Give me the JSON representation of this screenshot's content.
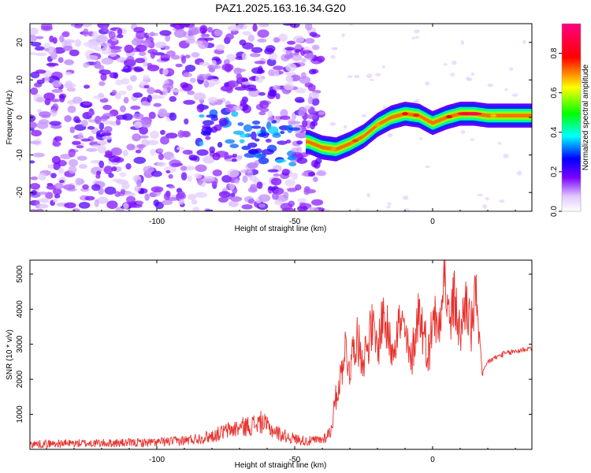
{
  "title": "PAZ1.2025.163.16.34.G20",
  "chart_data": [
    {
      "type": "heatmap",
      "xlabel": "Height of straight line (km)",
      "ylabel": "Frequency (Hz)",
      "xlim": [
        -146,
        36
      ],
      "ylim": [
        -25,
        25
      ],
      "xticks": [
        -100,
        -50,
        0
      ],
      "yticks": [
        -20,
        -10,
        0,
        10,
        20
      ],
      "colorbar": {
        "label": "Normalized spectral amplitude",
        "range": [
          0.0,
          0.95
        ],
        "ticks": [
          0.0,
          0.2,
          0.4,
          0.6,
          0.8
        ],
        "colormap": [
          "#ffffff",
          "#7a00ff",
          "#0000ff",
          "#00ffff",
          "#00ff00",
          "#ffff00",
          "#ff0000",
          "#ff00aa"
        ]
      },
      "ridge": {
        "description_values_only": true,
        "x": [
          -45,
          -40,
          -35,
          -30,
          -25,
          -20,
          -15,
          -10,
          -5,
          0,
          5,
          10,
          15,
          20,
          25,
          30,
          36
        ],
        "y": [
          -6.5,
          -8,
          -8.5,
          -7,
          -5,
          -2,
          0,
          1,
          0.5,
          -1.5,
          0,
          1,
          1,
          0.5,
          0.5,
          0.5,
          0.5
        ]
      }
    },
    {
      "type": "line",
      "xlabel": "Height of straight line (km)",
      "ylabel": "SNR (10 * v/v)",
      "xlim": [
        -146,
        36
      ],
      "ylim": [
        0,
        5400
      ],
      "xticks": [
        -100,
        -50,
        0
      ],
      "yticks": [
        1000,
        2000,
        3000,
        4000,
        5000
      ],
      "color": "#e8302c",
      "x": [
        -146,
        -140,
        -130,
        -120,
        -110,
        -100,
        -90,
        -80,
        -75,
        -70,
        -65,
        -62,
        -60,
        -55,
        -50,
        -45,
        -40,
        -37,
        -35,
        -33,
        -32,
        -30,
        -28,
        -25,
        -22,
        -20,
        -18,
        -15,
        -12,
        -10,
        -8,
        -5,
        -3,
        -1,
        0,
        2,
        4,
        6,
        8,
        10,
        12,
        14,
        16,
        17,
        18,
        20,
        25,
        30,
        36
      ],
      "y": [
        150,
        160,
        170,
        175,
        185,
        200,
        250,
        380,
        520,
        620,
        700,
        780,
        650,
        420,
        300,
        230,
        280,
        500,
        1500,
        2200,
        3000,
        2300,
        3200,
        2600,
        3500,
        2800,
        3900,
        2900,
        3600,
        3300,
        2400,
        4000,
        3200,
        2700,
        4100,
        3300,
        5200,
        3600,
        4300,
        3200,
        4300,
        3400,
        4500,
        3300,
        2100,
        2500,
        2700,
        2800,
        2900
      ]
    }
  ]
}
